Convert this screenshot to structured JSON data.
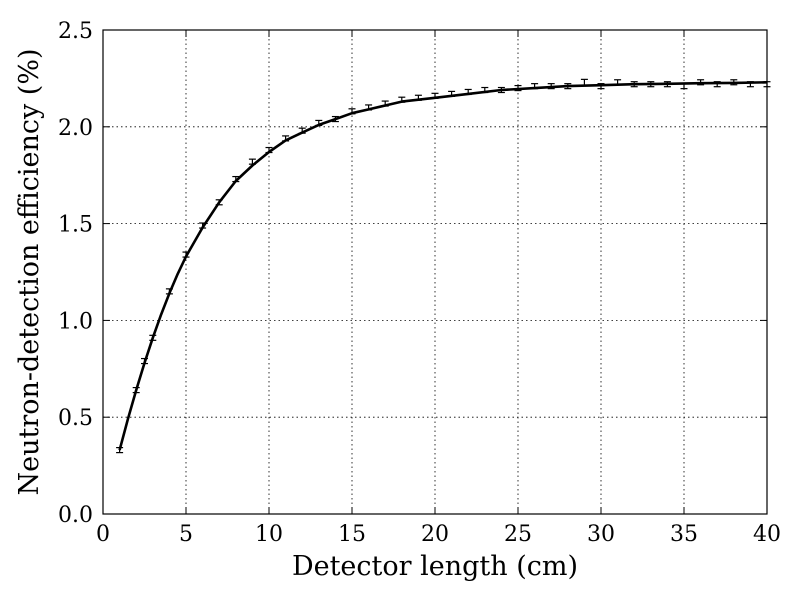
{
  "chart_data": {
    "type": "scatter",
    "title": "",
    "xlabel": "Detector length (cm)",
    "ylabel": "Neutron-detection efficiency (%)",
    "xlim": [
      0,
      40
    ],
    "ylim": [
      0,
      2.5
    ],
    "xticks": [
      "0",
      "5",
      "10",
      "15",
      "20",
      "25",
      "30",
      "35",
      "40"
    ],
    "yticks": [
      "0.0",
      "0.5",
      "1.0",
      "1.5",
      "2.0",
      "2.5"
    ],
    "grid": true,
    "series": [
      {
        "kind": "points_with_errorbars",
        "x": [
          1,
          2,
          2.5,
          3,
          4,
          5,
          6,
          7,
          8,
          9,
          10,
          11,
          12,
          13,
          14,
          15,
          16,
          17,
          18,
          19,
          20,
          21,
          22,
          23,
          24,
          25,
          26,
          27,
          28,
          29,
          30,
          31,
          32,
          33,
          34,
          35,
          36,
          37,
          38,
          39,
          40
        ],
        "y": [
          0.33,
          0.64,
          0.79,
          0.91,
          1.15,
          1.34,
          1.49,
          1.61,
          1.73,
          1.82,
          1.88,
          1.94,
          1.98,
          2.02,
          2.04,
          2.08,
          2.1,
          2.12,
          2.14,
          2.15,
          2.16,
          2.17,
          2.18,
          2.19,
          2.19,
          2.2,
          2.21,
          2.21,
          2.21,
          2.23,
          2.21,
          2.23,
          2.22,
          2.22,
          2.22,
          2.21,
          2.23,
          2.22,
          2.23,
          2.22,
          2.22
        ],
        "err": [
          0.008,
          0.008,
          0.008,
          0.008,
          0.008,
          0.008,
          0.008,
          0.008,
          0.008,
          0.008,
          0.008,
          0.008,
          0.008,
          0.008,
          0.008,
          0.008,
          0.008,
          0.008,
          0.008,
          0.008,
          0.008,
          0.008,
          0.008,
          0.008,
          0.008,
          0.008,
          0.008,
          0.008,
          0.01,
          0.015,
          0.012,
          0.01,
          0.008,
          0.008,
          0.008,
          0.012,
          0.008,
          0.008,
          0.008,
          0.008,
          0.008
        ]
      },
      {
        "kind": "fit_curve",
        "x": [
          1,
          1.5,
          2,
          2.5,
          3,
          3.5,
          4,
          4.5,
          5,
          6,
          7,
          8,
          9,
          10,
          11,
          12,
          13,
          14,
          15,
          16,
          17,
          18,
          19,
          20,
          22,
          24,
          26,
          28,
          30,
          32,
          34,
          36,
          38,
          40
        ],
        "y": [
          0.33,
          0.49,
          0.64,
          0.78,
          0.91,
          1.03,
          1.14,
          1.24,
          1.33,
          1.48,
          1.61,
          1.72,
          1.8,
          1.87,
          1.93,
          1.97,
          2.01,
          2.04,
          2.07,
          2.09,
          2.11,
          2.13,
          2.14,
          2.15,
          2.17,
          2.19,
          2.2,
          2.21,
          2.215,
          2.22,
          2.222,
          2.225,
          2.227,
          2.23
        ]
      }
    ]
  }
}
